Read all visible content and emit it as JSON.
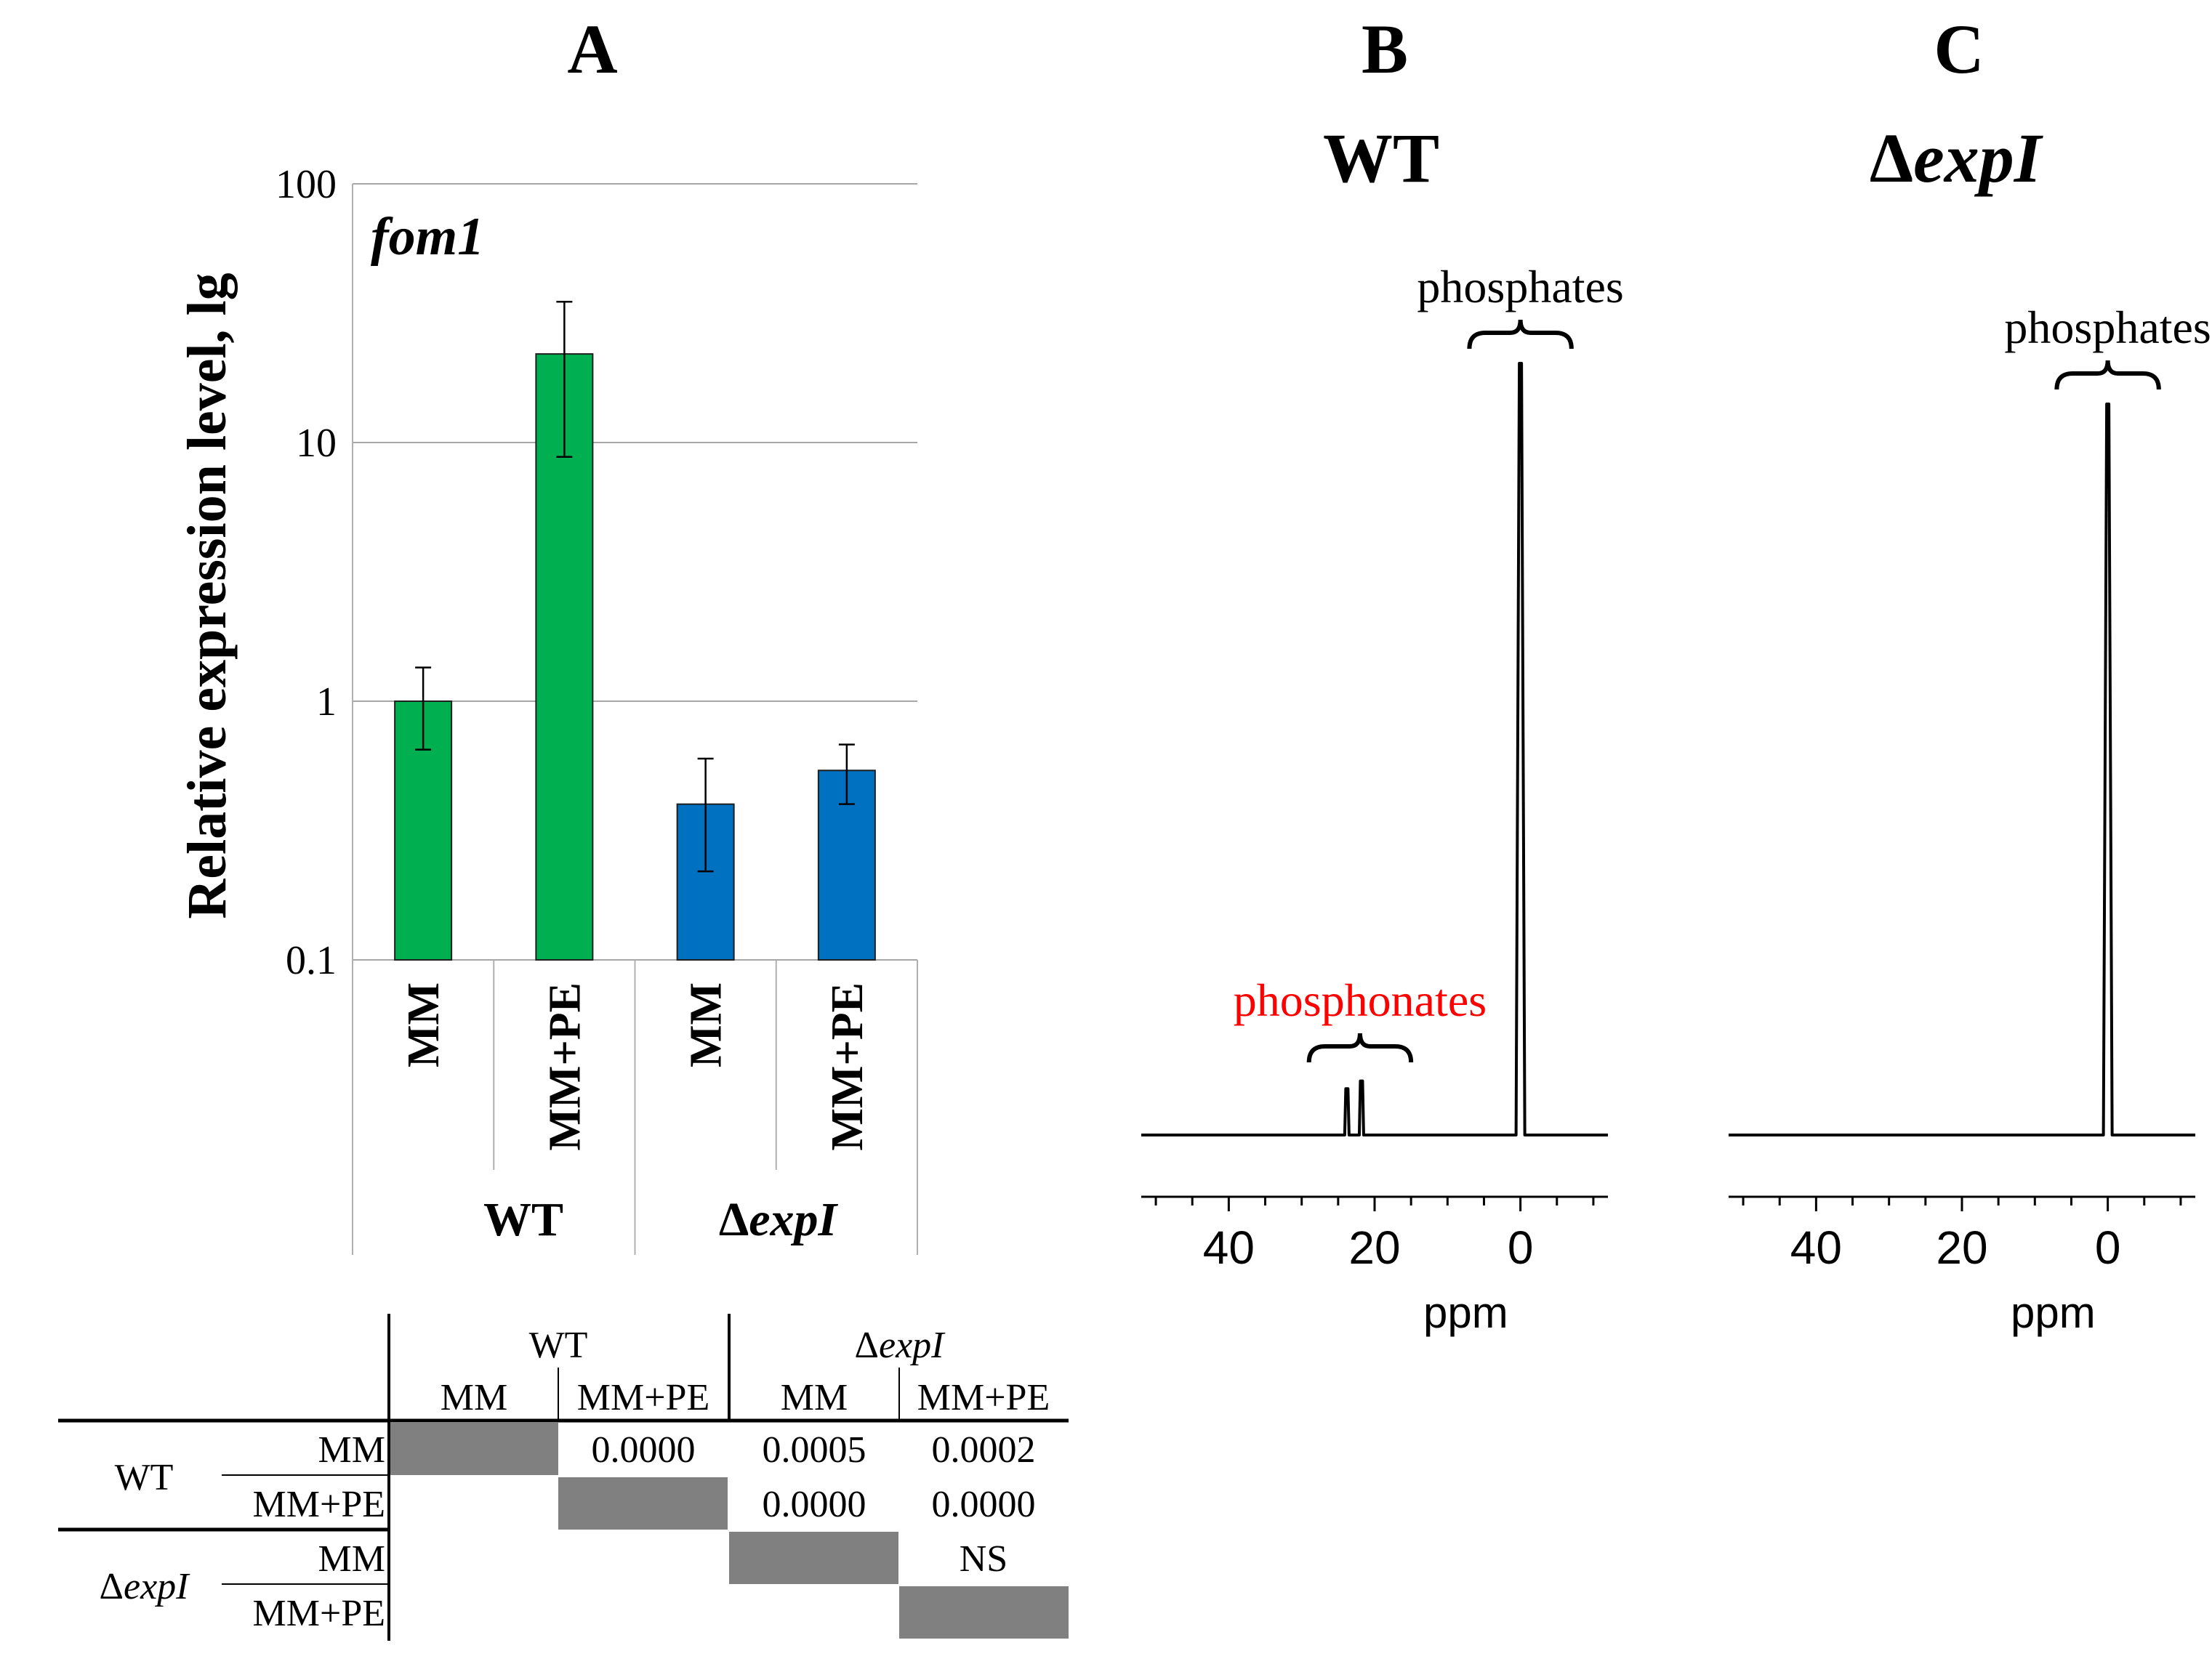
{
  "panels": {
    "a": {
      "letter": "A"
    },
    "b": {
      "letter": "B",
      "subtitle": "WT"
    },
    "c": {
      "letter": "C",
      "subtitle_prefix": "Δ",
      "subtitle_gene": "expI"
    }
  },
  "chart_data": [
    {
      "type": "bar",
      "panel": "A",
      "annotation": "fom1",
      "ylabel": "Relative expression level, lg",
      "yscale": "log",
      "ylim": [
        0.1,
        100
      ],
      "yticks": [
        0.1,
        1,
        10,
        100
      ],
      "ytick_labels": [
        "0.1",
        "1",
        "10",
        "100"
      ],
      "grid": true,
      "categories": [
        "MM",
        "MM+PE",
        "MM",
        "MM+PE"
      ],
      "groups": [
        {
          "label_prefix": "",
          "label_main": "WT",
          "categories": [
            0,
            1
          ],
          "color": "#00b050"
        },
        {
          "label_prefix": "Δ",
          "label_main": "expI",
          "categories": [
            2,
            3
          ],
          "color": "#0070c0"
        }
      ],
      "values": [
        1.0,
        22.0,
        0.4,
        0.54
      ],
      "error_low": [
        0.65,
        8.8,
        0.22,
        0.4
      ],
      "error_high": [
        1.35,
        35.0,
        0.6,
        0.68
      ]
    },
    {
      "type": "line",
      "panel": "B",
      "xlabel": "ppm",
      "xlim": [
        52,
        -12
      ],
      "xticks": [
        40,
        20,
        0
      ],
      "xtick_labels": [
        "40",
        "20",
        "0"
      ],
      "annotations": [
        {
          "text": "phosphates",
          "color": "#000000",
          "range": [
            7,
            -7
          ]
        },
        {
          "text": "phosphonates",
          "color": "#ff0000",
          "range": [
            29,
            15
          ]
        }
      ],
      "peaks": [
        {
          "ppm": 0.0,
          "relative_height": 1.0
        },
        {
          "ppm": 23.8,
          "relative_height": 0.06
        },
        {
          "ppm": 21.8,
          "relative_height": 0.07
        }
      ]
    },
    {
      "type": "line",
      "panel": "C",
      "xlabel": "ppm",
      "xlim": [
        52,
        -12
      ],
      "xticks": [
        40,
        20,
        0
      ],
      "xtick_labels": [
        "40",
        "20",
        "0"
      ],
      "annotations": [
        {
          "text": "phosphates",
          "color": "#000000",
          "range": [
            7,
            -7
          ]
        }
      ],
      "peaks": [
        {
          "ppm": 0.0,
          "relative_height": 1.0
        }
      ]
    }
  ],
  "pvalue_table": {
    "col_groups": [
      {
        "prefix": "",
        "label": "WT"
      },
      {
        "prefix": "Δ",
        "label": "expI"
      }
    ],
    "col_labels": [
      "MM",
      "MM+PE",
      "MM",
      "MM+PE"
    ],
    "row_groups": [
      {
        "prefix": "",
        "label": "WT"
      },
      {
        "prefix": "Δ",
        "label": "expI"
      }
    ],
    "row_labels": [
      "MM",
      "MM+PE",
      "MM",
      "MM+PE"
    ],
    "cells": [
      [
        "",
        "0.0000",
        "0.0005",
        "0.0002"
      ],
      [
        "",
        "",
        "0.0000",
        "0.0000"
      ],
      [
        "",
        "",
        "",
        "NS"
      ],
      [
        "",
        "",
        "",
        ""
      ]
    ],
    "diagonal_color": "#808080"
  }
}
